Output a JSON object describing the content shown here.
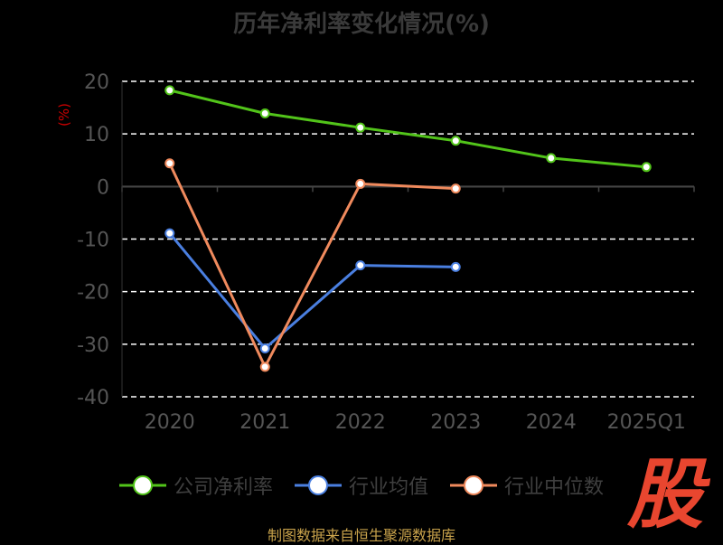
{
  "title": "历年净利率变化情况(%)",
  "source": "制图数据来自恒生聚源数据库",
  "logo_text": "股",
  "colors": {
    "background": "#000000",
    "grid": "#ffffff",
    "axis_text": "#555555",
    "ylabel": "#cc0000",
    "logo": "#e8462f"
  },
  "chart_data": {
    "type": "line",
    "title": "历年净利率变化情况(%)",
    "xlabel": "",
    "ylabel": "(%)",
    "categories": [
      "2020",
      "2021",
      "2022",
      "2023",
      "2024",
      "2025Q1"
    ],
    "yticks": [
      "20",
      "10",
      "0",
      "-10",
      "-20",
      "-30",
      "-40"
    ],
    "ylim": [
      -40,
      20
    ],
    "grid": true,
    "legend_position": "bottom",
    "series": [
      {
        "name": "公司净利率",
        "color": "#52c41a",
        "values": [
          18.3,
          13.9,
          11.2,
          8.7,
          5.4,
          3.7
        ]
      },
      {
        "name": "行业均值",
        "color": "#4a7fe0",
        "values": [
          -8.9,
          -30.8,
          -15.0,
          -15.3,
          null,
          null
        ]
      },
      {
        "name": "行业中位数",
        "color": "#f08a5d",
        "values": [
          4.4,
          -34.3,
          0.5,
          -0.4,
          null,
          null
        ]
      }
    ]
  }
}
